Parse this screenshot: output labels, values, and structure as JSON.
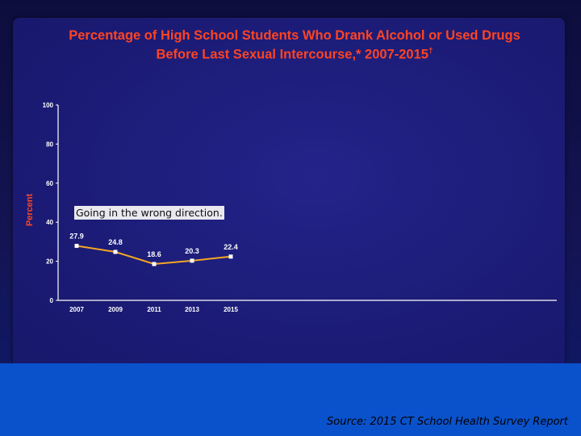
{
  "chart_data": {
    "type": "line",
    "title_line1": "Percentage of High School Students Who Drank Alcohol or Used Drugs",
    "title_line2": "Before Last Sexual Intercourse,* 2007-2015",
    "title_mark": "†",
    "ylabel": "Percent",
    "xlabel": "",
    "categories": [
      "2007",
      "2009",
      "2011",
      "2013",
      "2015"
    ],
    "values": [
      27.9,
      24.8,
      18.6,
      20.3,
      22.4
    ],
    "data_labels": [
      "27.9",
      "24.8",
      "18.6",
      "20.3",
      "22.4"
    ],
    "y_ticks": [
      "0",
      "20",
      "40",
      "60",
      "80",
      "100"
    ],
    "ylim": [
      0,
      100
    ],
    "grid": false,
    "legend": "none",
    "line_color": "#f5a623",
    "marker_color": "#ffffff"
  },
  "annotation": "Going in the wrong direction.",
  "source": "Source: 2015 CT School Health Survey Report",
  "colors": {
    "title": "#ff4422",
    "panel": "#1c1c78",
    "band": "#0a52cc"
  }
}
